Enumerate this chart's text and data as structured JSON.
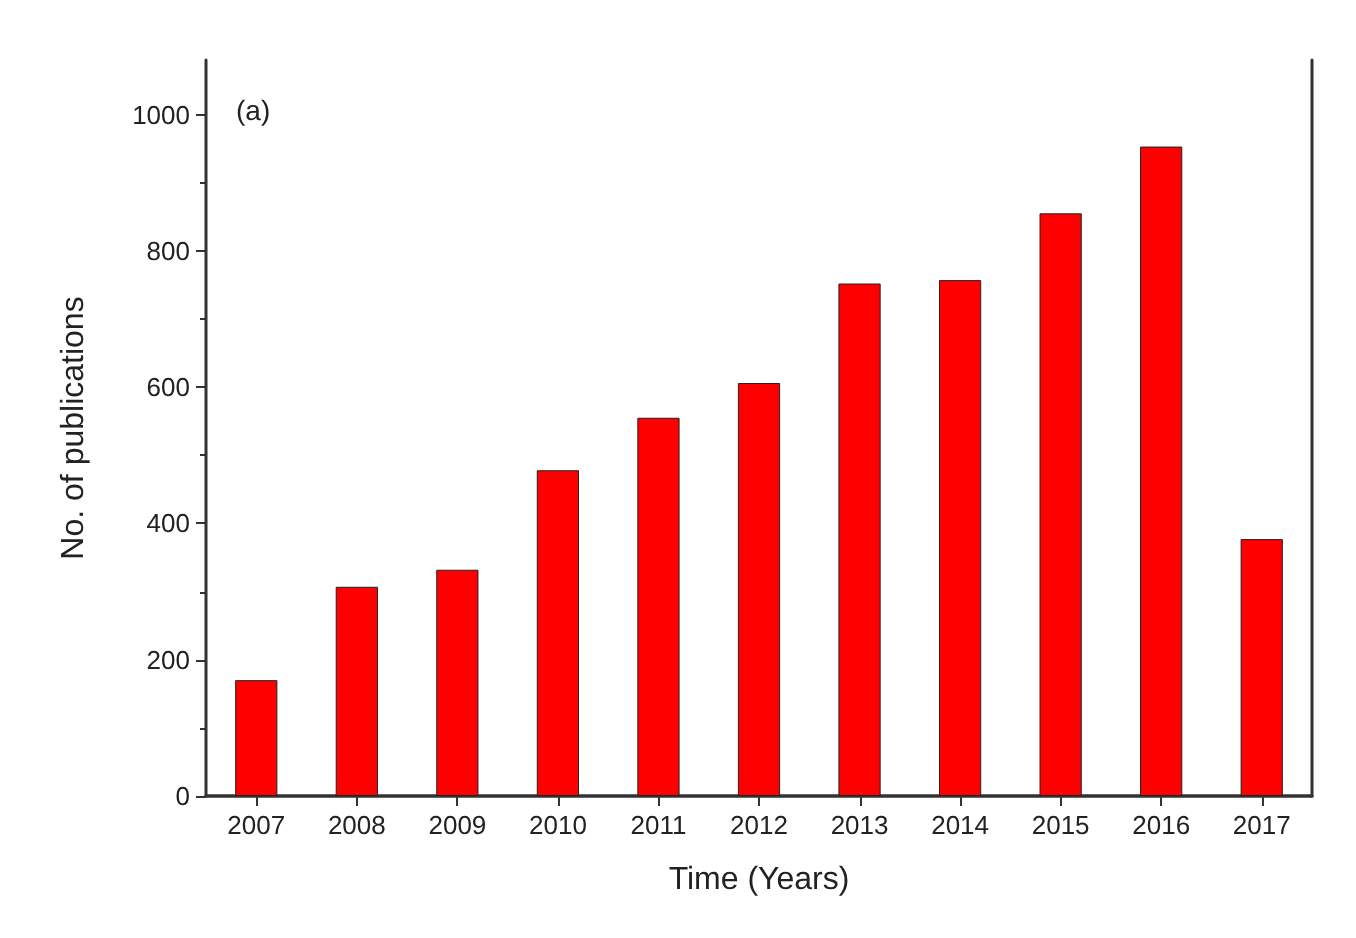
{
  "chart_data": {
    "type": "bar",
    "xlabel": "Time (Years)",
    "ylabel": "No. of publications",
    "annotations": [
      "(a)"
    ],
    "categories": [
      "2007",
      "2008",
      "2009",
      "2010",
      "2011",
      "2012",
      "2013",
      "2014",
      "2015",
      "2016",
      "2017"
    ],
    "values": [
      170,
      307,
      332,
      478,
      555,
      606,
      752,
      757,
      855,
      953,
      377
    ],
    "color": "#ff0000",
    "ylim": [
      0,
      1080
    ],
    "yticks": [
      0,
      200,
      400,
      600,
      800,
      1000
    ],
    "grid": false
  }
}
